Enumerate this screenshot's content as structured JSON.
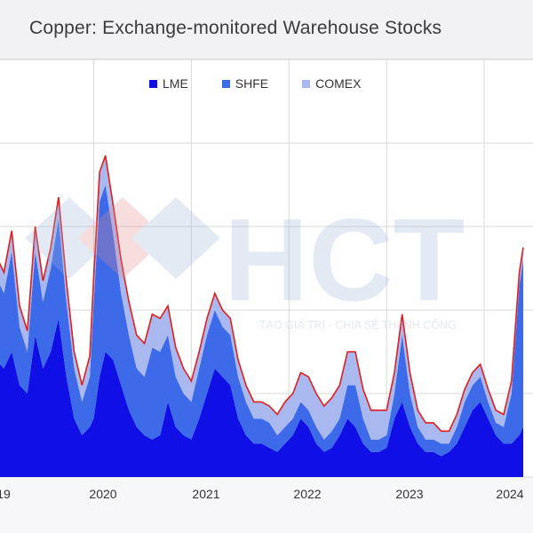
{
  "title": "Copper: Exchange-monitored Warehouse Stocks",
  "watermark": {
    "logo_text": "HCT",
    "tagline": "TẠO GIÁ TRỊ - CHIA SẺ THÀNH CÔNG"
  },
  "colors": {
    "lme": "#1010e6",
    "shfe": "#3d6ae8",
    "comex": "#aab8f0",
    "total_line": "#e01e1e",
    "grid": "#d9d9d9"
  },
  "chart_data": {
    "type": "area",
    "stacked": true,
    "title": "Copper: Exchange-monitored Warehouse Stocks",
    "xlabel": "",
    "ylabel": "",
    "x_tick_labels": [
      "19",
      "2020",
      "2021",
      "2022",
      "2023",
      "2024"
    ],
    "x_range": [
      2019.0,
      2024.4
    ],
    "y_range": [
      0,
      100
    ],
    "y_scale_note": "no y-axis labels visible; values on relative 0-100 scale",
    "legend": {
      "position": "top-center",
      "entries": [
        "LME",
        "SHFE",
        "COMEX"
      ]
    },
    "grid": true,
    "x": [
      2019.0,
      2019.08,
      2019.16,
      2019.24,
      2019.32,
      2019.4,
      2019.48,
      2019.56,
      2019.64,
      2019.72,
      2019.8,
      2019.88,
      2019.96,
      2020.0,
      2020.06,
      2020.12,
      2020.2,
      2020.28,
      2020.36,
      2020.44,
      2020.52,
      2020.6,
      2020.68,
      2020.76,
      2020.84,
      2020.92,
      2021.0,
      2021.08,
      2021.16,
      2021.24,
      2021.32,
      2021.4,
      2021.48,
      2021.56,
      2021.64,
      2021.72,
      2021.8,
      2021.88,
      2021.96,
      2022.04,
      2022.12,
      2022.2,
      2022.28,
      2022.36,
      2022.44,
      2022.52,
      2022.6,
      2022.68,
      2022.76,
      2022.84,
      2022.92,
      2023.0,
      2023.08,
      2023.16,
      2023.24,
      2023.32,
      2023.4,
      2023.48,
      2023.56,
      2023.64,
      2023.72,
      2023.8,
      2023.88,
      2023.96,
      2024.04,
      2024.12,
      2024.2,
      2024.28,
      2024.36,
      2024.4
    ],
    "series": [
      {
        "name": "LME",
        "values": [
          28,
          26,
          30,
          22,
          20,
          34,
          26,
          30,
          38,
          24,
          14,
          10,
          12,
          14,
          24,
          30,
          28,
          22,
          16,
          12,
          10,
          9,
          10,
          18,
          12,
          10,
          9,
          14,
          20,
          26,
          24,
          22,
          14,
          10,
          8,
          8,
          7,
          6,
          8,
          10,
          14,
          12,
          8,
          6,
          7,
          10,
          14,
          12,
          8,
          6,
          6,
          7,
          14,
          18,
          12,
          8,
          6,
          6,
          5,
          6,
          8,
          12,
          16,
          18,
          14,
          10,
          8,
          8,
          10,
          12
        ]
      },
      {
        "name": "SHFE",
        "values": [
          20,
          18,
          24,
          14,
          10,
          20,
          16,
          20,
          24,
          18,
          12,
          8,
          12,
          28,
          42,
          40,
          30,
          22,
          18,
          14,
          14,
          22,
          20,
          16,
          12,
          10,
          9,
          12,
          14,
          14,
          12,
          12,
          10,
          8,
          6,
          6,
          6,
          4,
          4,
          4,
          4,
          4,
          4,
          3,
          4,
          4,
          8,
          10,
          6,
          3,
          3,
          3,
          6,
          16,
          8,
          4,
          3,
          3,
          3,
          2,
          4,
          6,
          6,
          6,
          4,
          3,
          4,
          12,
          36,
          40
        ]
      },
      {
        "name": "COMEX",
        "values": [
          5,
          5,
          5,
          5,
          5,
          6,
          5,
          5,
          5,
          5,
          4,
          4,
          5,
          6,
          7,
          7,
          7,
          8,
          8,
          8,
          8,
          8,
          8,
          7,
          7,
          6,
          5,
          4,
          4,
          4,
          4,
          4,
          4,
          4,
          4,
          4,
          4,
          5,
          6,
          6,
          7,
          8,
          8,
          8,
          8,
          8,
          8,
          8,
          7,
          7,
          7,
          6,
          5,
          5,
          5,
          4,
          4,
          4,
          3,
          3,
          3,
          3,
          3,
          3,
          3,
          3,
          3,
          3,
          3,
          3
        ]
      }
    ]
  }
}
